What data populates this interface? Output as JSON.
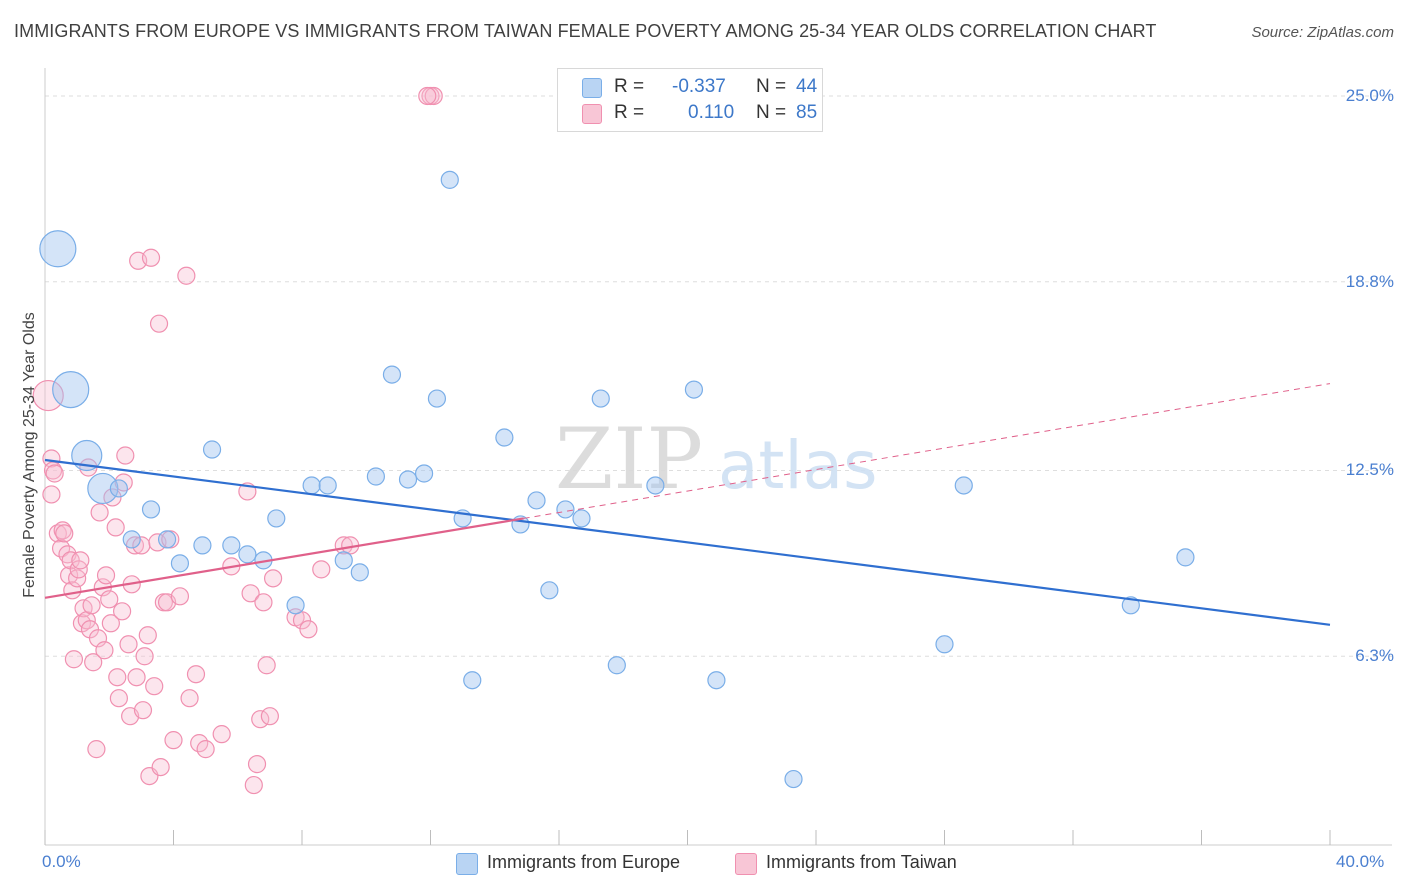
{
  "title": "IMMIGRANTS FROM EUROPE VS IMMIGRANTS FROM TAIWAN FEMALE POVERTY AMONG 25-34 YEAR OLDS CORRELATION CHART",
  "source": "Source: ZipAtlas.com",
  "watermark": {
    "zip": "ZIP",
    "atlas": "atlas"
  },
  "legend": {
    "europe": {
      "r_label": "R =",
      "r_value": "-0.337",
      "n_label": "N =",
      "n_value": "44"
    },
    "taiwan": {
      "r_label": "R =",
      "r_value": "0.110",
      "n_label": "N =",
      "n_value": "85"
    }
  },
  "bottom_legend": {
    "europe": "Immigrants from Europe",
    "taiwan": "Immigrants from Taiwan"
  },
  "chart_data": {
    "type": "scatter",
    "title": "IMMIGRANTS FROM EUROPE VS IMMIGRANTS FROM TAIWAN FEMALE POVERTY AMONG 25-34 YEAR OLDS CORRELATION CHART",
    "xlabel": "",
    "ylabel": "Female Poverty Among 25-34 Year Olds",
    "xlim": [
      0,
      40
    ],
    "ylim": [
      0,
      25.8
    ],
    "x_tick_labels": [
      "0.0%",
      "40.0%"
    ],
    "y_ticks": [
      25.0,
      18.8,
      12.5,
      6.3
    ],
    "y_tick_labels": [
      "25.0%",
      "18.8%",
      "12.5%",
      "6.3%"
    ],
    "grid": true,
    "legend_position": "top-center",
    "colors": {
      "europe": "#7aaee8",
      "taiwan": "#f090b0",
      "europe_line": "#2f6fd0",
      "taiwan_line": "#e0608a"
    },
    "series": [
      {
        "name": "Immigrants from Europe",
        "color": "#7aaee8",
        "r": -0.337,
        "n": 44,
        "trend": {
          "x0": 0,
          "y0": 12.85,
          "x1": 40,
          "y1": 7.35
        },
        "points": [
          {
            "x": 0.4,
            "y": 19.9,
            "s": 3
          },
          {
            "x": 0.8,
            "y": 15.2,
            "s": 3
          },
          {
            "x": 1.3,
            "y": 13.0,
            "s": 2
          },
          {
            "x": 1.8,
            "y": 11.9,
            "s": 2
          },
          {
            "x": 2.3,
            "y": 11.9,
            "s": 1
          },
          {
            "x": 3.3,
            "y": 11.2,
            "s": 1
          },
          {
            "x": 2.7,
            "y": 10.2,
            "s": 1
          },
          {
            "x": 3.8,
            "y": 10.2,
            "s": 1
          },
          {
            "x": 4.2,
            "y": 9.4,
            "s": 1
          },
          {
            "x": 4.9,
            "y": 10.0,
            "s": 1
          },
          {
            "x": 5.2,
            "y": 13.2,
            "s": 1
          },
          {
            "x": 5.8,
            "y": 10.0,
            "s": 1
          },
          {
            "x": 6.3,
            "y": 9.7,
            "s": 1
          },
          {
            "x": 6.8,
            "y": 9.5,
            "s": 1
          },
          {
            "x": 7.2,
            "y": 10.9,
            "s": 1
          },
          {
            "x": 7.8,
            "y": 8.0,
            "s": 1
          },
          {
            "x": 8.3,
            "y": 12.0,
            "s": 1
          },
          {
            "x": 8.8,
            "y": 12.0,
            "s": 1
          },
          {
            "x": 9.3,
            "y": 9.5,
            "s": 1
          },
          {
            "x": 9.8,
            "y": 9.1,
            "s": 1
          },
          {
            "x": 10.3,
            "y": 12.3,
            "s": 1
          },
          {
            "x": 10.8,
            "y": 15.7,
            "s": 1
          },
          {
            "x": 11.3,
            "y": 12.2,
            "s": 1
          },
          {
            "x": 11.8,
            "y": 12.4,
            "s": 1
          },
          {
            "x": 12.2,
            "y": 14.9,
            "s": 1
          },
          {
            "x": 12.6,
            "y": 22.2,
            "s": 1
          },
          {
            "x": 13.0,
            "y": 10.9,
            "s": 1
          },
          {
            "x": 13.3,
            "y": 5.5,
            "s": 1
          },
          {
            "x": 14.3,
            "y": 13.6,
            "s": 1
          },
          {
            "x": 14.8,
            "y": 10.7,
            "s": 1
          },
          {
            "x": 15.3,
            "y": 11.5,
            "s": 1
          },
          {
            "x": 15.7,
            "y": 8.5,
            "s": 1
          },
          {
            "x": 16.2,
            "y": 11.2,
            "s": 1
          },
          {
            "x": 16.7,
            "y": 10.9,
            "s": 1
          },
          {
            "x": 17.3,
            "y": 14.9,
            "s": 1
          },
          {
            "x": 17.8,
            "y": 6.0,
            "s": 1
          },
          {
            "x": 19.0,
            "y": 12.0,
            "s": 1
          },
          {
            "x": 20.2,
            "y": 15.2,
            "s": 1
          },
          {
            "x": 20.9,
            "y": 5.5,
            "s": 1
          },
          {
            "x": 23.3,
            "y": 2.2,
            "s": 1
          },
          {
            "x": 28.0,
            "y": 6.7,
            "s": 1
          },
          {
            "x": 28.6,
            "y": 12.0,
            "s": 1
          },
          {
            "x": 33.8,
            "y": 8.0,
            "s": 1
          },
          {
            "x": 35.5,
            "y": 9.6,
            "s": 1
          }
        ]
      },
      {
        "name": "Immigrants from Taiwan",
        "color": "#f090b0",
        "r": 0.11,
        "n": 85,
        "trend": {
          "x0": 0,
          "y0": 8.25,
          "x1": 14.9,
          "y1": 10.9
        },
        "trend_dashed": {
          "x0": 14.9,
          "y0": 10.9,
          "x1": 40,
          "y1": 15.4
        },
        "points": [
          {
            "x": 0.1,
            "y": 15.0,
            "s": 2
          },
          {
            "x": 0.2,
            "y": 12.9,
            "s": 1
          },
          {
            "x": 0.2,
            "y": 11.7,
            "s": 1
          },
          {
            "x": 0.25,
            "y": 12.5,
            "s": 1
          },
          {
            "x": 0.3,
            "y": 12.4,
            "s": 1
          },
          {
            "x": 0.4,
            "y": 10.4,
            "s": 1
          },
          {
            "x": 0.5,
            "y": 9.9,
            "s": 1
          },
          {
            "x": 0.55,
            "y": 10.5,
            "s": 1
          },
          {
            "x": 0.6,
            "y": 10.4,
            "s": 1
          },
          {
            "x": 0.7,
            "y": 9.7,
            "s": 1
          },
          {
            "x": 0.75,
            "y": 9.0,
            "s": 1
          },
          {
            "x": 0.8,
            "y": 9.5,
            "s": 1
          },
          {
            "x": 0.85,
            "y": 8.5,
            "s": 1
          },
          {
            "x": 0.9,
            "y": 6.2,
            "s": 1
          },
          {
            "x": 1.0,
            "y": 8.9,
            "s": 1
          },
          {
            "x": 1.05,
            "y": 9.2,
            "s": 1
          },
          {
            "x": 1.1,
            "y": 9.5,
            "s": 1
          },
          {
            "x": 1.15,
            "y": 7.4,
            "s": 1
          },
          {
            "x": 1.2,
            "y": 7.9,
            "s": 1
          },
          {
            "x": 1.3,
            "y": 7.5,
            "s": 1
          },
          {
            "x": 1.35,
            "y": 12.6,
            "s": 1
          },
          {
            "x": 1.4,
            "y": 7.2,
            "s": 1
          },
          {
            "x": 1.45,
            "y": 8.0,
            "s": 1
          },
          {
            "x": 1.5,
            "y": 6.1,
            "s": 1
          },
          {
            "x": 1.6,
            "y": 3.2,
            "s": 1
          },
          {
            "x": 1.65,
            "y": 6.9,
            "s": 1
          },
          {
            "x": 1.7,
            "y": 11.1,
            "s": 1
          },
          {
            "x": 1.8,
            "y": 8.6,
            "s": 1
          },
          {
            "x": 1.85,
            "y": 6.5,
            "s": 1
          },
          {
            "x": 1.9,
            "y": 9.0,
            "s": 1
          },
          {
            "x": 2.0,
            "y": 8.2,
            "s": 1
          },
          {
            "x": 2.05,
            "y": 7.4,
            "s": 1
          },
          {
            "x": 2.1,
            "y": 11.6,
            "s": 1
          },
          {
            "x": 2.2,
            "y": 10.6,
            "s": 1
          },
          {
            "x": 2.25,
            "y": 5.6,
            "s": 1
          },
          {
            "x": 2.3,
            "y": 4.9,
            "s": 1
          },
          {
            "x": 2.4,
            "y": 7.8,
            "s": 1
          },
          {
            "x": 2.45,
            "y": 12.1,
            "s": 1
          },
          {
            "x": 2.5,
            "y": 13.0,
            "s": 1
          },
          {
            "x": 2.6,
            "y": 6.7,
            "s": 1
          },
          {
            "x": 2.65,
            "y": 4.3,
            "s": 1
          },
          {
            "x": 2.7,
            "y": 8.7,
            "s": 1
          },
          {
            "x": 2.8,
            "y": 10.0,
            "s": 1
          },
          {
            "x": 2.85,
            "y": 5.6,
            "s": 1
          },
          {
            "x": 2.9,
            "y": 19.5,
            "s": 1
          },
          {
            "x": 3.0,
            "y": 10.0,
            "s": 1
          },
          {
            "x": 3.05,
            "y": 4.5,
            "s": 1
          },
          {
            "x": 3.1,
            "y": 6.3,
            "s": 1
          },
          {
            "x": 3.2,
            "y": 7.0,
            "s": 1
          },
          {
            "x": 3.25,
            "y": 2.3,
            "s": 1
          },
          {
            "x": 3.3,
            "y": 19.6,
            "s": 1
          },
          {
            "x": 3.4,
            "y": 5.3,
            "s": 1
          },
          {
            "x": 3.5,
            "y": 10.1,
            "s": 1
          },
          {
            "x": 3.55,
            "y": 17.4,
            "s": 1
          },
          {
            "x": 3.6,
            "y": 2.6,
            "s": 1
          },
          {
            "x": 3.7,
            "y": 8.1,
            "s": 1
          },
          {
            "x": 3.8,
            "y": 8.1,
            "s": 1
          },
          {
            "x": 3.9,
            "y": 10.2,
            "s": 1
          },
          {
            "x": 4.0,
            "y": 3.5,
            "s": 1
          },
          {
            "x": 4.2,
            "y": 8.3,
            "s": 1
          },
          {
            "x": 4.4,
            "y": 19.0,
            "s": 1
          },
          {
            "x": 4.5,
            "y": 4.9,
            "s": 1
          },
          {
            "x": 4.7,
            "y": 5.7,
            "s": 1
          },
          {
            "x": 4.8,
            "y": 3.4,
            "s": 1
          },
          {
            "x": 5.0,
            "y": 3.2,
            "s": 1
          },
          {
            "x": 5.5,
            "y": 3.7,
            "s": 1
          },
          {
            "x": 5.8,
            "y": 9.3,
            "s": 1
          },
          {
            "x": 6.3,
            "y": 11.8,
            "s": 1
          },
          {
            "x": 6.4,
            "y": 8.4,
            "s": 1
          },
          {
            "x": 6.5,
            "y": 2.0,
            "s": 1
          },
          {
            "x": 6.6,
            "y": 2.7,
            "s": 1
          },
          {
            "x": 6.7,
            "y": 4.2,
            "s": 1
          },
          {
            "x": 6.8,
            "y": 8.1,
            "s": 1
          },
          {
            "x": 6.9,
            "y": 6.0,
            "s": 1
          },
          {
            "x": 7.0,
            "y": 4.3,
            "s": 1
          },
          {
            "x": 7.1,
            "y": 8.9,
            "s": 1
          },
          {
            "x": 7.8,
            "y": 7.6,
            "s": 1
          },
          {
            "x": 8.0,
            "y": 7.5,
            "s": 1
          },
          {
            "x": 8.2,
            "y": 7.2,
            "s": 1
          },
          {
            "x": 8.6,
            "y": 9.2,
            "s": 1
          },
          {
            "x": 9.3,
            "y": 10.0,
            "s": 1
          },
          {
            "x": 9.5,
            "y": 10.0,
            "s": 1
          },
          {
            "x": 12.0,
            "y": 25.0,
            "s": 1
          },
          {
            "x": 12.1,
            "y": 25.0,
            "s": 1
          },
          {
            "x": 11.9,
            "y": 25.0,
            "s": 1
          }
        ]
      }
    ]
  }
}
